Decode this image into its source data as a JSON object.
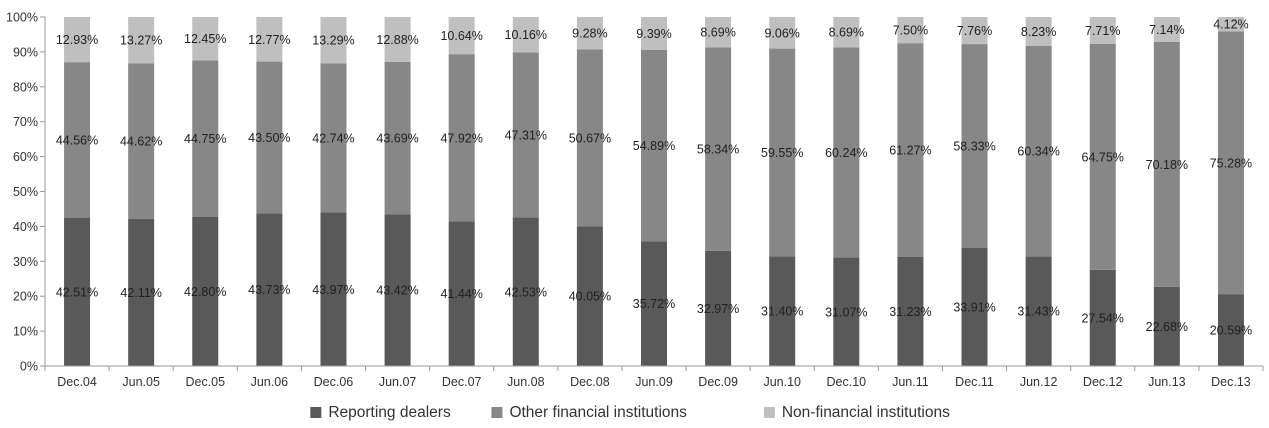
{
  "chart_data": {
    "type": "bar",
    "stacked": true,
    "percent": true,
    "categories": [
      "Dec.04",
      "Jun.05",
      "Dec.05",
      "Jun.06",
      "Dec.06",
      "Jun.07",
      "Dec.07",
      "Jun.08",
      "Dec.08",
      "Jun.09",
      "Dec.09",
      "Jun.10",
      "Dec.10",
      "Jun.11",
      "Dec.11",
      "Jun.12",
      "Dec.12",
      "Jun.13",
      "Dec.13"
    ],
    "series": [
      {
        "name": "Reporting dealers",
        "color": "#595959",
        "values": [
          42.51,
          42.11,
          42.8,
          43.73,
          43.97,
          43.42,
          41.44,
          42.53,
          40.05,
          35.72,
          32.97,
          31.4,
          31.07,
          31.23,
          33.91,
          31.43,
          27.54,
          22.68,
          20.59
        ],
        "labels": [
          "42.51%",
          "42.11%",
          "42.80%",
          "43.73%",
          "43.97%",
          "43.42%",
          "41.44%",
          "42.53%",
          "40.05%",
          "35.72%",
          "32.97%",
          "31.40%",
          "31.07%",
          "31.23%",
          "33.91%",
          "31.43%",
          "27.54%",
          "22.68%",
          "20.59%"
        ]
      },
      {
        "name": "Other financial institutions",
        "color": "#878787",
        "values": [
          44.56,
          44.62,
          44.75,
          43.5,
          42.74,
          43.69,
          47.92,
          47.31,
          50.67,
          54.89,
          58.34,
          59.55,
          60.24,
          61.27,
          58.33,
          60.34,
          64.75,
          70.18,
          75.28
        ],
        "labels": [
          "44.56%",
          "44.62%",
          "44.75%",
          "43.50%",
          "42.74%",
          "43.69%",
          "47.92%",
          "47.31%",
          "50.67%",
          "54.89%",
          "58.34%",
          "59.55%",
          "60.24%",
          "61.27%",
          "58.33%",
          "60.34%",
          "64.75%",
          "70.18%",
          "75.28%"
        ]
      },
      {
        "name": "Non-financial institutions",
        "color": "#bfbfbf",
        "values": [
          12.93,
          13.27,
          12.45,
          12.77,
          13.29,
          12.88,
          10.64,
          10.16,
          9.28,
          9.39,
          8.69,
          9.06,
          8.69,
          7.5,
          7.76,
          8.23,
          7.71,
          7.14,
          4.12
        ],
        "labels": [
          "12.93%",
          "13.27%",
          "12.45%",
          "12.77%",
          "13.29%",
          "12.88%",
          "10.64%",
          "10.16%",
          "9.28%",
          "9.39%",
          "8.69%",
          "9.06%",
          "8.69%",
          "7.50%",
          "7.76%",
          "8.23%",
          "7.71%",
          "7.14%",
          "4.12%"
        ]
      }
    ],
    "yticks": [
      "0%",
      "10%",
      "20%",
      "30%",
      "40%",
      "50%",
      "60%",
      "70%",
      "80%",
      "90%",
      "100%"
    ],
    "ylim": [
      0,
      100
    ],
    "grid": false,
    "legend_position": "bottom",
    "title": "",
    "xlabel": "",
    "ylabel": ""
  }
}
